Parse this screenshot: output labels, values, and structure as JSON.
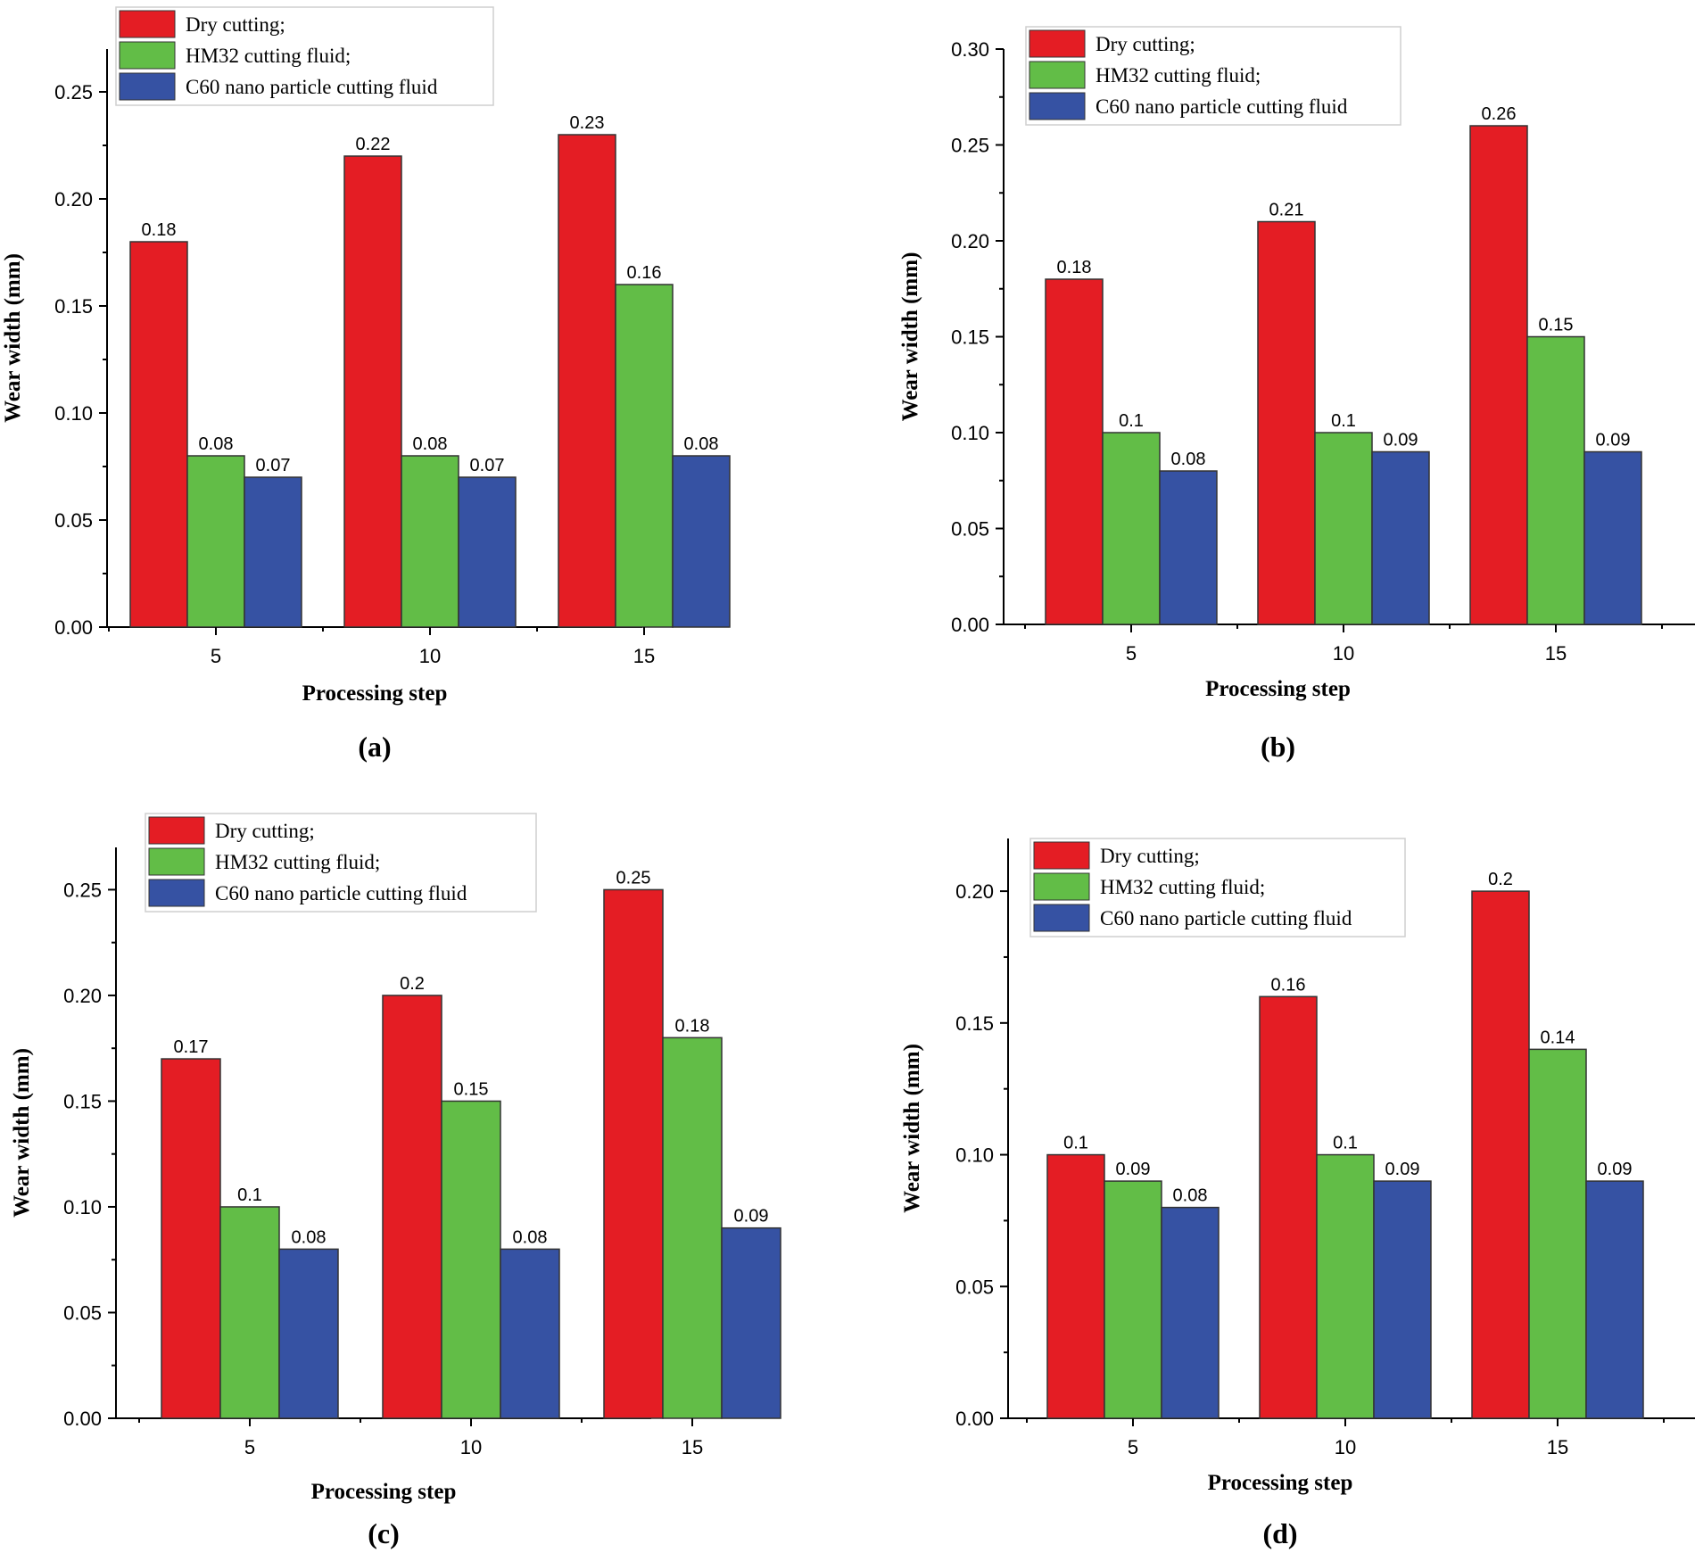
{
  "colors": {
    "dry": "#e41d24",
    "hm32": "#62bd47",
    "c60": "#3652a3",
    "bar_stroke": "#333333"
  },
  "chart_data": [
    {
      "type": "bar",
      "panel": "(a)",
      "xlabel": "Processing step",
      "ylabel": "Wear width (mm)",
      "categories": [
        "5",
        "10",
        "15"
      ],
      "ylim": [
        0,
        0.27
      ],
      "yticks": [
        "0.00",
        "0.05",
        "0.10",
        "0.15",
        "0.20",
        "0.25"
      ],
      "legend_position": "top-left",
      "series": [
        {
          "name": "Dry cutting;",
          "key": "dry",
          "values": [
            0.18,
            0.22,
            0.23
          ],
          "labels": [
            "0.18",
            "0.22",
            "0.23"
          ]
        },
        {
          "name": "HM32 cutting fluid;",
          "key": "hm32",
          "values": [
            0.08,
            0.08,
            0.16
          ],
          "labels": [
            "0.08",
            "0.08",
            "0.16"
          ]
        },
        {
          "name": "C60 nano particle cutting fluid",
          "key": "c60",
          "values": [
            0.07,
            0.07,
            0.08
          ],
          "labels": [
            "0.07",
            "0.07",
            "0.08"
          ]
        }
      ]
    },
    {
      "type": "bar",
      "panel": "(b)",
      "xlabel": "Processing step",
      "ylabel": "Wear width (mm)",
      "categories": [
        "5",
        "10",
        "15"
      ],
      "ylim": [
        0,
        0.3
      ],
      "yticks": [
        "0.00",
        "0.05",
        "0.10",
        "0.15",
        "0.20",
        "0.25",
        "0.30"
      ],
      "legend_position": "top-left",
      "series": [
        {
          "name": "Dry cutting;",
          "key": "dry",
          "values": [
            0.18,
            0.21,
            0.26
          ],
          "labels": [
            "0.18",
            "0.21",
            "0.26"
          ]
        },
        {
          "name": "HM32 cutting fluid;",
          "key": "hm32",
          "values": [
            0.1,
            0.1,
            0.15
          ],
          "labels": [
            "0.1",
            "0.1",
            "0.15"
          ]
        },
        {
          "name": "C60 nano particle cutting fluid",
          "key": "c60",
          "values": [
            0.08,
            0.09,
            0.09
          ],
          "labels": [
            "0.08",
            "0.09",
            "0.09"
          ]
        }
      ]
    },
    {
      "type": "bar",
      "panel": "(c)",
      "xlabel": "Processing step",
      "ylabel": "Wear width (mm)",
      "categories": [
        "5",
        "10",
        "15"
      ],
      "ylim": [
        0,
        0.27
      ],
      "yticks": [
        "0.00",
        "0.05",
        "0.10",
        "0.15",
        "0.20",
        "0.25"
      ],
      "legend_position": "top-left",
      "series": [
        {
          "name": "Dry cutting;",
          "key": "dry",
          "values": [
            0.17,
            0.2,
            0.25
          ],
          "labels": [
            "0.17",
            "0.2",
            "0.25"
          ]
        },
        {
          "name": "HM32 cutting fluid;",
          "key": "hm32",
          "values": [
            0.1,
            0.15,
            0.18
          ],
          "labels": [
            "0.1",
            "0.15",
            "0.18"
          ]
        },
        {
          "name": "C60 nano particle cutting fluid",
          "key": "c60",
          "values": [
            0.08,
            0.08,
            0.09
          ],
          "labels": [
            "0.08",
            "0.08",
            "0.09"
          ]
        }
      ]
    },
    {
      "type": "bar",
      "panel": "(d)",
      "xlabel": "Processing step",
      "ylabel": "Wear width (mm)",
      "categories": [
        "5",
        "10",
        "15"
      ],
      "ylim": [
        0,
        0.22
      ],
      "yticks": [
        "0.00",
        "0.05",
        "0.10",
        "0.15",
        "0.20"
      ],
      "legend_position": "top-left",
      "series": [
        {
          "name": "Dry cutting;",
          "key": "dry",
          "values": [
            0.1,
            0.16,
            0.2
          ],
          "labels": [
            "0.1",
            "0.16",
            "0.2"
          ]
        },
        {
          "name": "HM32 cutting fluid;",
          "key": "hm32",
          "values": [
            0.09,
            0.1,
            0.14
          ],
          "labels": [
            "0.09",
            "0.1",
            "0.14"
          ]
        },
        {
          "name": "C60 nano particle cutting fluid",
          "key": "c60",
          "values": [
            0.08,
            0.09,
            0.09
          ],
          "labels": [
            "0.08",
            "0.09",
            "0.09"
          ]
        }
      ]
    }
  ]
}
